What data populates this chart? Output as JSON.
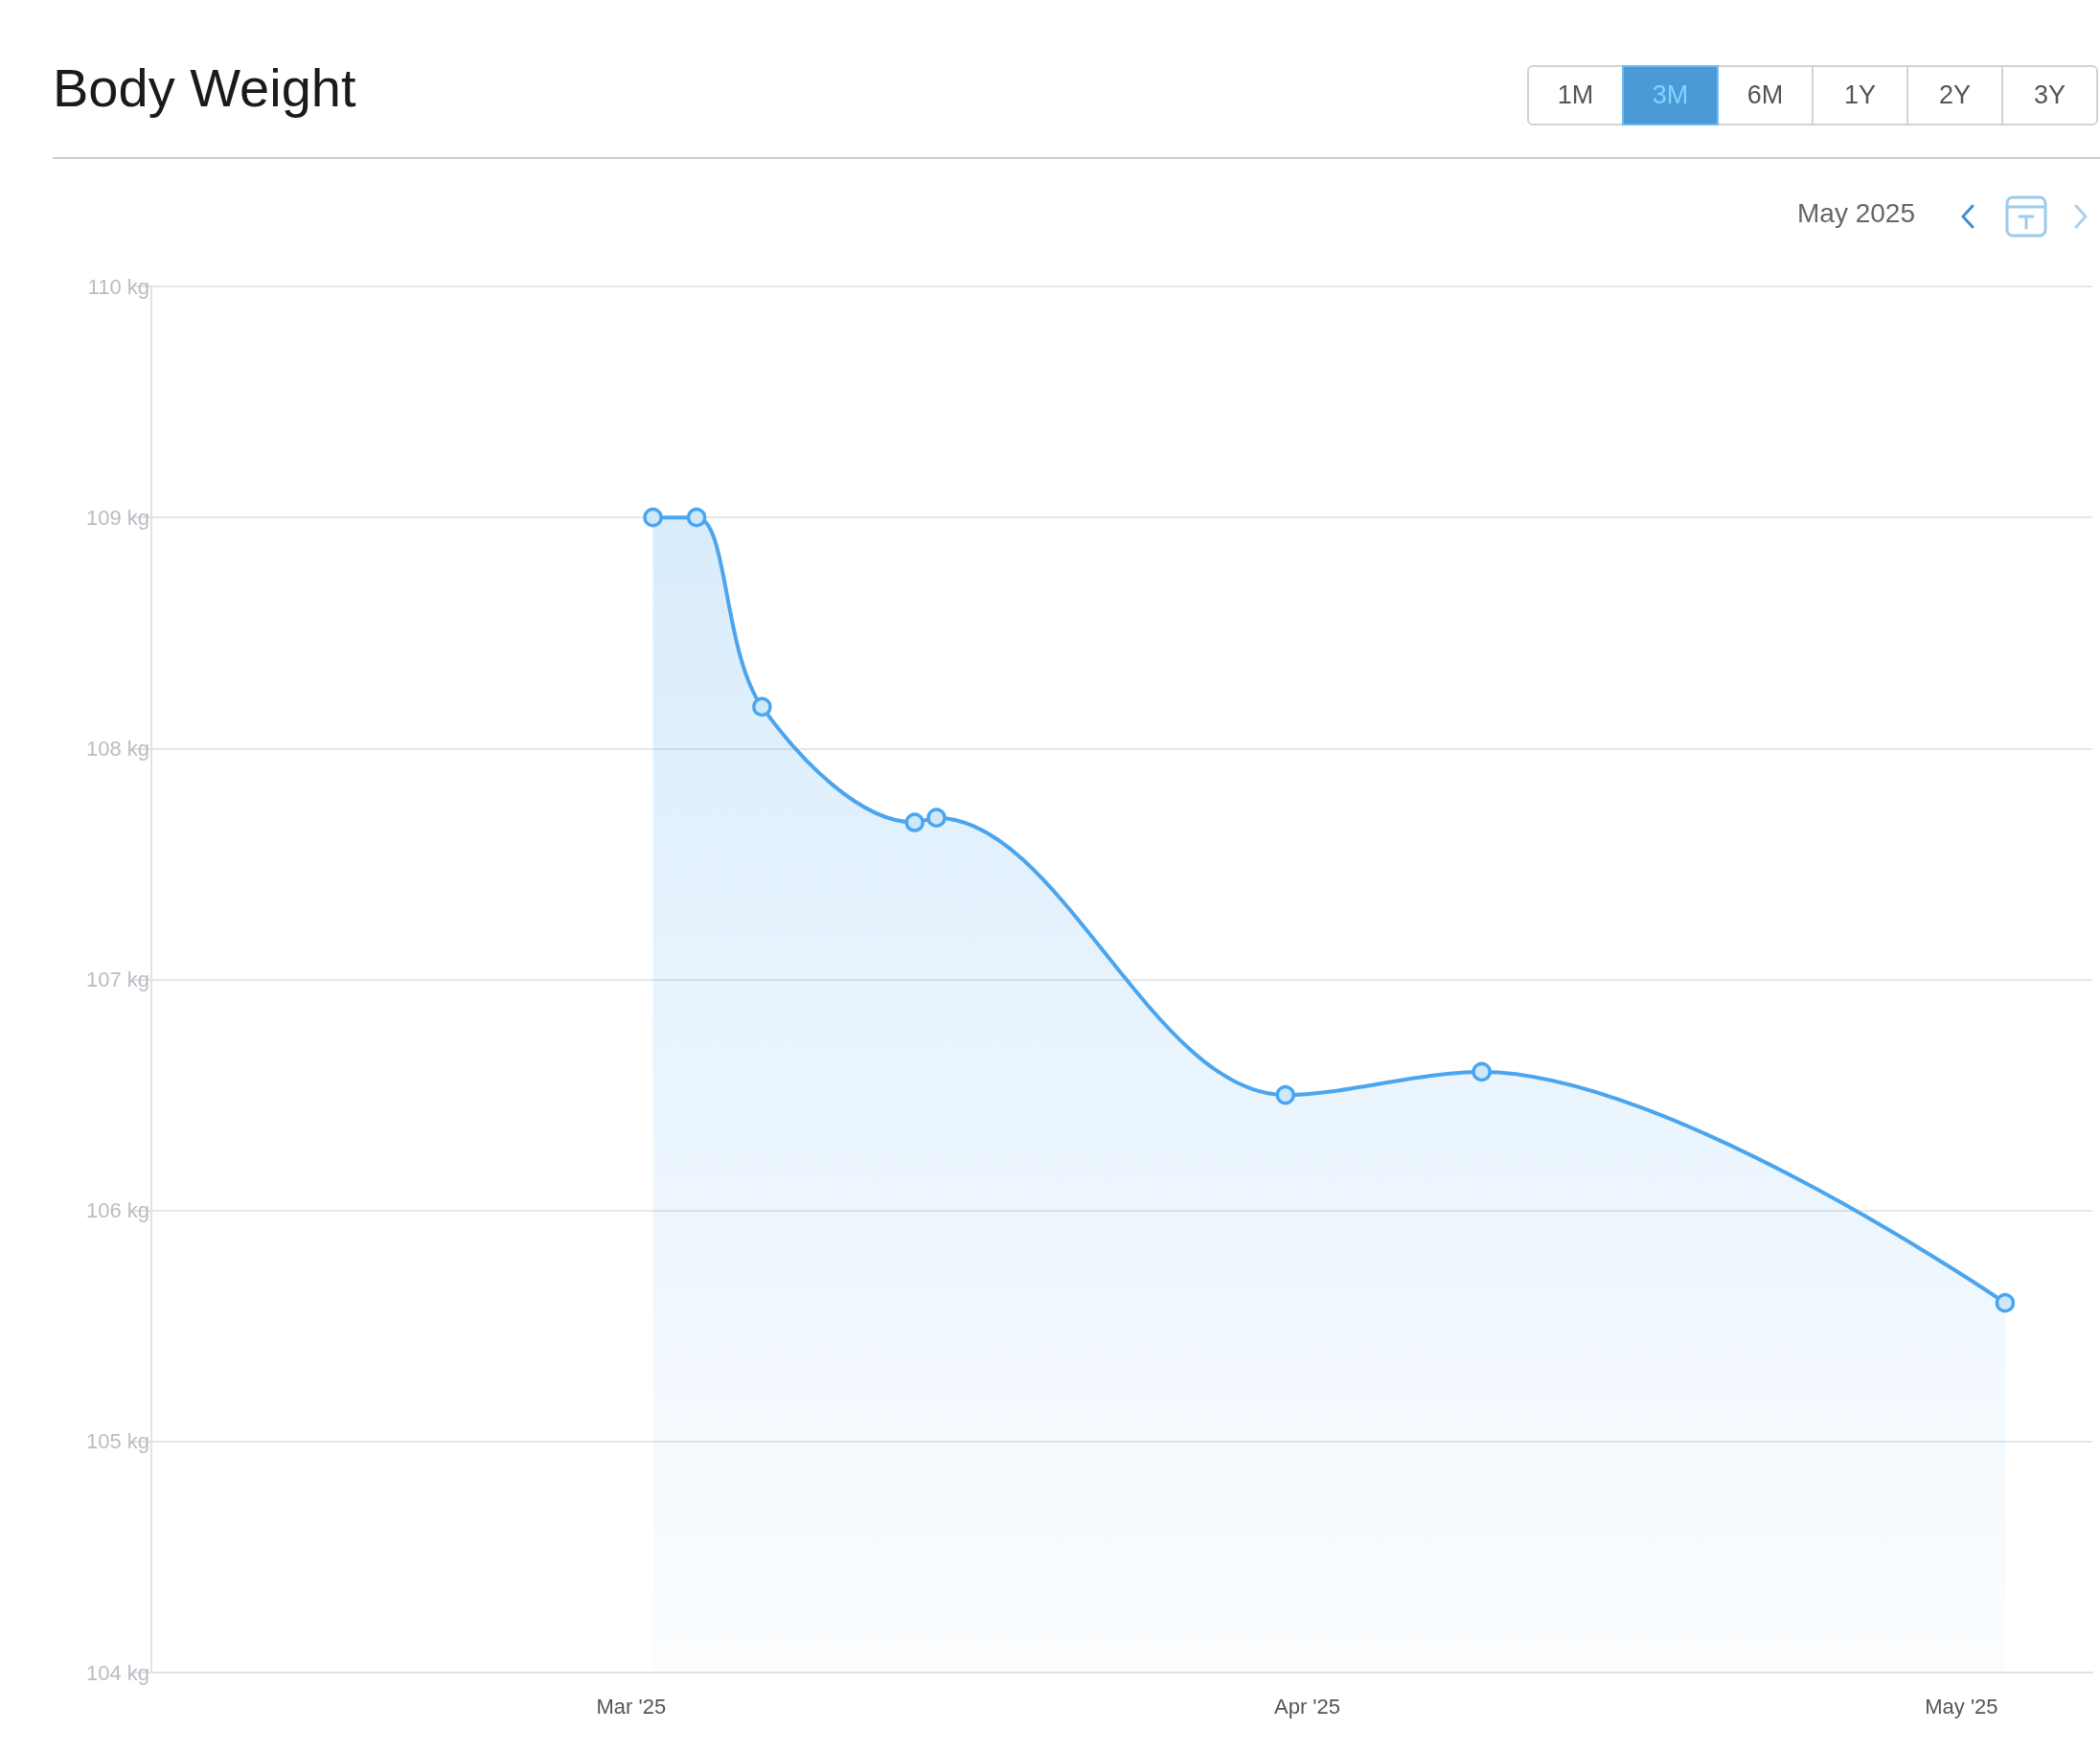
{
  "chart_data": {
    "type": "area",
    "title": "Body Weight",
    "annotations": [
      "1M",
      "3M",
      "6M",
      "1Y",
      "2Y",
      "3Y",
      "May 2025"
    ],
    "x": [
      "2025-03-02",
      "2025-03-04",
      "2025-03-07",
      "2025-03-14",
      "2025-03-15",
      "2025-03-31",
      "2025-04-09",
      "2025-05-03"
    ],
    "values": [
      109.0,
      109.0,
      108.18,
      107.68,
      107.7,
      106.5,
      106.6,
      105.6
    ],
    "color": "#4ba5ee",
    "marker": "circle",
    "grid": "y",
    "xlim": [
      "2025-02-07",
      "2025-05-07"
    ],
    "xticks": [
      {
        "value": "2025-03-01",
        "label": "Mar '25"
      },
      {
        "value": "2025-04-01",
        "label": "Apr '25"
      },
      {
        "value": "2025-05-01",
        "label": "May '25"
      }
    ],
    "ylim": [
      104,
      110
    ],
    "yticks": [
      {
        "value": 104,
        "label": "104 kg"
      },
      {
        "value": 105,
        "label": "105 kg"
      },
      {
        "value": 106,
        "label": "106 kg"
      },
      {
        "value": 107,
        "label": "107 kg"
      },
      {
        "value": 108,
        "label": "108 kg"
      },
      {
        "value": 109,
        "label": "109 kg"
      },
      {
        "value": 110,
        "label": "110 kg"
      }
    ]
  }
}
